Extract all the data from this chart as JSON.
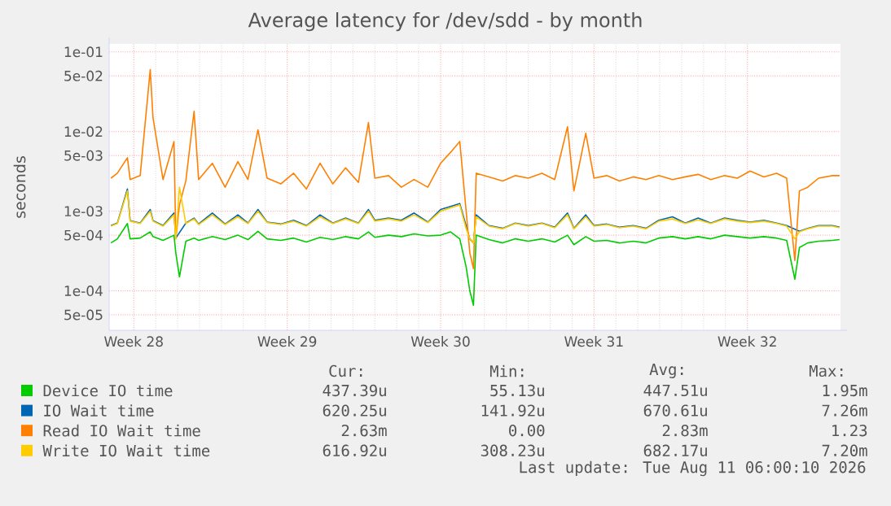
{
  "chart_data": {
    "type": "line",
    "title": "Average latency for /dev/sdd - by month",
    "ylabel": "seconds",
    "log": "y",
    "grid": true,
    "legend": "bottom",
    "xlim": [
      "2026-07-08T21:00",
      "2026-08-11T06:00"
    ],
    "xticks": [
      {
        "value": "2026-07-10T00:00",
        "label": "Week 28"
      },
      {
        "value": "2026-07-17T00:00",
        "label": "Week 29"
      },
      {
        "value": "2026-07-24T00:00",
        "label": "Week 30"
      },
      {
        "value": "2026-07-31T00:00",
        "label": "Week 31"
      },
      {
        "value": "2026-08-07T00:00",
        "label": "Week 32"
      }
    ],
    "ylim": [
      3.2e-05,
      0.126
    ],
    "yticks": [
      {
        "value": 5e-05,
        "label": "5e-05"
      },
      {
        "value": 0.0001,
        "label": "1e-04"
      },
      {
        "value": 0.0005,
        "label": "5e-04"
      },
      {
        "value": 0.001,
        "label": "1e-03"
      },
      {
        "value": 0.005,
        "label": "5e-03"
      },
      {
        "value": 0.01,
        "label": "1e-02"
      },
      {
        "value": 0.05,
        "label": "5e-02"
      },
      {
        "value": 0.1,
        "label": "1e-01"
      }
    ],
    "x": [
      "2026-07-08T23:00",
      "2026-07-09T06:00",
      "2026-07-09T17:00",
      "2026-07-09T20:00",
      "2026-07-10T07:00",
      "2026-07-10T18:00",
      "2026-07-10T21:00",
      "2026-07-11T08:00",
      "2026-07-11T20:00",
      "2026-07-11T22:00",
      "2026-07-12T02:00",
      "2026-07-12T09:00",
      "2026-07-12T18:00",
      "2026-07-12T23:00",
      "2026-07-13T14:00",
      "2026-07-14T04:00",
      "2026-07-14T18:00",
      "2026-07-15T05:00",
      "2026-07-15T16:00",
      "2026-07-16T02:00",
      "2026-07-16T17:00",
      "2026-07-17T07:00",
      "2026-07-17T21:00",
      "2026-07-18T12:00",
      "2026-07-19T02:00",
      "2026-07-19T16:00",
      "2026-07-20T06:00",
      "2026-07-20T17:00",
      "2026-07-21T00:00",
      "2026-07-21T15:00",
      "2026-07-22T05:00",
      "2026-07-22T19:00",
      "2026-07-23T10:00",
      "2026-07-24T00:00",
      "2026-07-24T11:00",
      "2026-07-24T21:00",
      "2026-07-25T04:00",
      "2026-07-25T08:00",
      "2026-07-25T12:00",
      "2026-07-25T15:00",
      "2026-07-26T05:00",
      "2026-07-26T20:00",
      "2026-07-27T10:00",
      "2026-07-28T00:00",
      "2026-07-28T15:00",
      "2026-07-29T05:00",
      "2026-07-29T19:00",
      "2026-07-30T02:00",
      "2026-07-30T15:00",
      "2026-07-31T00:00",
      "2026-07-31T14:00",
      "2026-08-01T04:00",
      "2026-08-01T19:00",
      "2026-08-02T09:00",
      "2026-08-02T23:00",
      "2026-08-03T14:00",
      "2026-08-04T04:00",
      "2026-08-04T18:00",
      "2026-08-05T08:00",
      "2026-08-05T23:00",
      "2026-08-06T13:00",
      "2026-08-07T03:00",
      "2026-08-07T18:00",
      "2026-08-08T08:00",
      "2026-08-08T19:00",
      "2026-08-09T04:00",
      "2026-08-09T09:00",
      "2026-08-09T18:00",
      "2026-08-10T06:00",
      "2026-08-10T21:00",
      "2026-08-11T05:00"
    ],
    "series": [
      {
        "name": "Device IO time",
        "color": "#00cc00",
        "values": [
          0.0004,
          0.00045,
          0.0007,
          0.00045,
          0.00046,
          0.00055,
          0.00048,
          0.00043,
          0.0005,
          0.0003,
          0.00015,
          0.00042,
          0.00046,
          0.00043,
          0.00048,
          0.00044,
          0.0005,
          0.00044,
          0.00056,
          0.00045,
          0.00043,
          0.00046,
          0.00041,
          0.00047,
          0.00044,
          0.00048,
          0.00045,
          0.00055,
          0.00047,
          0.0005,
          0.00048,
          0.00052,
          0.00049,
          0.0005,
          0.00055,
          0.00045,
          0.0002,
          0.0001,
          6.6e-05,
          0.0005,
          0.00044,
          0.0004,
          0.00045,
          0.00042,
          0.00045,
          0.00041,
          0.0005,
          0.00038,
          0.00048,
          0.00042,
          0.00043,
          0.0004,
          0.00042,
          0.0004,
          0.00046,
          0.00048,
          0.00045,
          0.00048,
          0.00045,
          0.0005,
          0.00048,
          0.00046,
          0.00048,
          0.00046,
          0.00043,
          0.00014,
          0.00035,
          0.0004,
          0.00042,
          0.00043,
          0.00044
        ]
      },
      {
        "name": "IO Wait time",
        "color": "#0066b3",
        "values": [
          0.00066,
          0.00071,
          0.0019,
          0.00076,
          0.00071,
          0.00105,
          0.00076,
          0.00066,
          0.00095,
          0.00046,
          null,
          0.00071,
          0.00082,
          0.00069,
          0.00095,
          0.00069,
          0.0009,
          0.00071,
          0.00105,
          0.00073,
          0.00069,
          0.00077,
          0.00066,
          0.0009,
          0.00071,
          0.00082,
          0.00071,
          0.00105,
          0.00077,
          0.00082,
          0.00077,
          0.00095,
          0.00073,
          0.00105,
          0.00115,
          0.00125,
          null,
          0.00045,
          0.0004,
          0.0009,
          0.00066,
          0.00061,
          0.00071,
          0.00066,
          0.00071,
          0.00063,
          0.00095,
          0.00061,
          0.0009,
          0.00066,
          0.00069,
          0.00063,
          0.00066,
          0.00061,
          0.00077,
          0.00085,
          0.00071,
          0.00082,
          0.00071,
          0.00082,
          0.00077,
          0.00073,
          0.00077,
          0.00071,
          0.00066,
          null,
          0.00056,
          0.00061,
          0.00066,
          0.00066,
          0.00063
        ]
      },
      {
        "name": "Read IO Wait time",
        "color": "#ff8000",
        "values": [
          0.0026,
          0.003,
          0.0047,
          0.0025,
          0.0028,
          0.06,
          0.015,
          0.0025,
          0.0075,
          0.00045,
          0.0012,
          0.0024,
          0.018,
          0.0025,
          0.004,
          0.002,
          0.0042,
          0.0025,
          0.0105,
          0.0026,
          0.0022,
          0.003,
          0.0019,
          0.004,
          0.0022,
          0.0035,
          0.0023,
          0.013,
          0.0026,
          0.0028,
          0.002,
          0.0025,
          0.002,
          0.004,
          0.0055,
          0.0075,
          0.001,
          0.0003,
          0.00019,
          0.003,
          0.0027,
          0.0024,
          0.0028,
          0.0026,
          0.003,
          0.0025,
          0.0115,
          0.0018,
          0.0095,
          0.0026,
          0.0028,
          0.0024,
          0.0027,
          0.0025,
          0.0028,
          0.0025,
          0.0027,
          0.0029,
          0.0025,
          0.0028,
          0.0026,
          0.0032,
          0.0027,
          0.003,
          0.0026,
          0.00024,
          0.0018,
          0.002,
          0.0026,
          0.0028,
          0.0028
        ]
      },
      {
        "name": "Write IO Wait time",
        "color": "#ffcc00",
        "values": [
          0.00065,
          0.0007,
          0.0018,
          0.00075,
          0.0007,
          0.001,
          0.00075,
          0.00065,
          0.0009,
          0.00045,
          0.002,
          0.0007,
          0.0008,
          0.00068,
          0.0009,
          0.00068,
          0.00085,
          0.0007,
          0.001,
          0.00072,
          0.00068,
          0.00075,
          0.00065,
          0.00085,
          0.0007,
          0.0008,
          0.0007,
          0.001,
          0.00075,
          0.0008,
          0.00075,
          0.0009,
          0.00072,
          0.001,
          0.0011,
          0.0012,
          0.0006,
          0.00045,
          0.0004,
          0.00085,
          0.00065,
          0.0006,
          0.0007,
          0.00065,
          0.0007,
          0.00062,
          0.0009,
          0.0006,
          0.00085,
          0.00065,
          0.00068,
          0.00062,
          0.00065,
          0.0006,
          0.00075,
          0.0008,
          0.0007,
          0.00078,
          0.0007,
          0.0008,
          0.00075,
          0.00072,
          0.00075,
          0.0007,
          0.00065,
          0.00045,
          0.00055,
          0.0006,
          0.00065,
          0.00065,
          0.00062
        ]
      }
    ],
    "annotations": [
      "Cur:",
      "Min:",
      "Avg:",
      "Max:",
      "437.39u",
      "55.13u",
      "447.51u",
      "1.95m",
      "620.25u",
      "141.92u",
      "670.61u",
      "7.26m",
      "2.63m",
      "0.00",
      "2.83m",
      "1.23",
      "616.92u",
      "308.23u",
      "682.17u",
      "7.20m",
      "Last update: Tue Aug 11 06:00:10 2026"
    ]
  }
}
